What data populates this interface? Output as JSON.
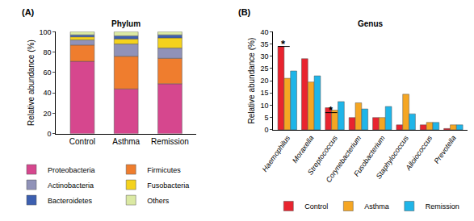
{
  "chart_data": [
    {
      "type": "bar",
      "stacked": true,
      "title": "Phylum",
      "annotations": [
        {
          "text": "(A)"
        }
      ],
      "ylabel": "Relative abundance (%)",
      "categories": [
        "Control",
        "Asthma",
        "Remission"
      ],
      "series": [
        {
          "name": "Proteobacteria",
          "color": "#d6478e",
          "values": [
            71,
            44,
            49
          ]
        },
        {
          "name": "Firmicutes",
          "color": "#ef7d2e",
          "values": [
            16,
            32,
            25
          ]
        },
        {
          "name": "Actinobacteria",
          "color": "#9092b8",
          "values": [
            5,
            12,
            10
          ]
        },
        {
          "name": "Fusobacteria",
          "color": "#f4d21d",
          "values": [
            3,
            5,
            10
          ]
        },
        {
          "name": "Bacteroidetes",
          "color": "#3c5fb0",
          "values": [
            2,
            3,
            3
          ]
        },
        {
          "name": "Others",
          "color": "#dbe9a3",
          "values": [
            3,
            4,
            3
          ]
        }
      ],
      "ylim": [
        0,
        100
      ],
      "yticks": [
        0,
        20,
        40,
        60,
        80,
        100
      ],
      "grid": false,
      "legend": "bottom"
    },
    {
      "type": "bar",
      "stacked": false,
      "title": "Genus",
      "annotations": [
        {
          "text": "(B)"
        },
        {
          "text": "*",
          "x": "Haemophilus",
          "y": 35
        },
        {
          "text": "*",
          "x": "Streptococcus",
          "y": 8
        }
      ],
      "ylabel": "Relative abundance (%)",
      "categories": [
        "Haemophilus",
        "Moraxella",
        "Streptococcus",
        "Corynebacterium",
        "Fusobacterium",
        "Staphylococcus",
        "Alloiococcus",
        "Prevotella"
      ],
      "series": [
        {
          "name": "Control",
          "color": "#e8242f",
          "values": [
            34,
            29,
            9,
            5,
            5,
            2,
            2,
            0.5
          ]
        },
        {
          "name": "Asthma",
          "color": "#f5a623",
          "values": [
            21,
            19.5,
            8,
            11,
            5,
            14.5,
            3,
            2
          ]
        },
        {
          "name": "Remission",
          "color": "#1fb5e8",
          "values": [
            24,
            22,
            11.5,
            8.5,
            9.5,
            6.5,
            3,
            2
          ]
        }
      ],
      "ylim": [
        0,
        40
      ],
      "yticks": [
        0,
        5,
        10,
        15,
        20,
        25,
        30,
        35,
        40
      ],
      "grid": false,
      "legend": "bottom"
    }
  ]
}
